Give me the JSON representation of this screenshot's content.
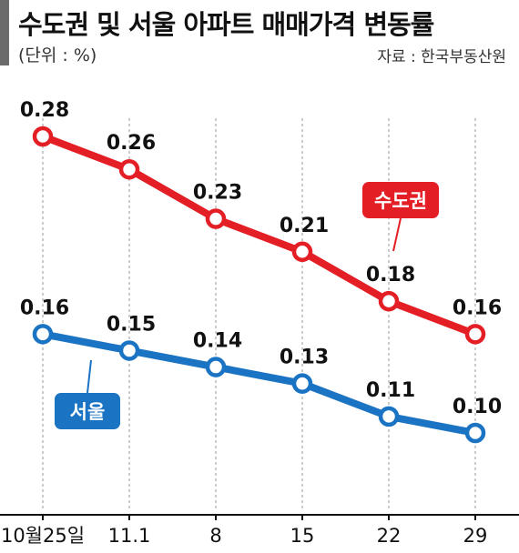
{
  "header": {
    "title": "수도권 및 서울 아파트 매매가격 변동률",
    "unit": "(단위 : %)",
    "source": "자료 : 한국부동산원"
  },
  "colors": {
    "metro": "#e31e24",
    "seoul": "#1a73c3",
    "grid": "#999999",
    "title_bar": "#6b6b6b"
  },
  "chart_data": {
    "type": "line",
    "title": "수도권 및 서울 아파트 매매가격 변동률",
    "categories": [
      "10월25일",
      "11.1",
      "8",
      "15",
      "22",
      "29"
    ],
    "series": [
      {
        "name": "수도권",
        "values": [
          0.28,
          0.26,
          0.23,
          0.21,
          0.18,
          0.16
        ],
        "labels": [
          "0.28",
          "0.26",
          "0.23",
          "0.21",
          "0.18",
          "0.16"
        ]
      },
      {
        "name": "서울",
        "values": [
          0.16,
          0.15,
          0.14,
          0.13,
          0.11,
          0.1
        ],
        "labels": [
          "0.16",
          "0.15",
          "0.14",
          "0.13",
          "0.11",
          "0.10"
        ]
      }
    ],
    "grid": "vertical dashed",
    "legend": "inline labels"
  }
}
